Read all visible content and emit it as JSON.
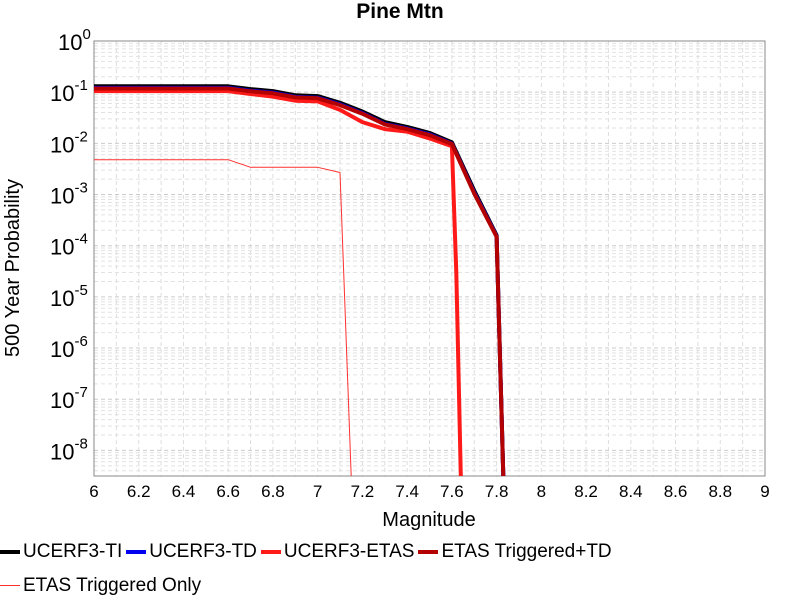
{
  "chart_data": {
    "type": "line",
    "title": "Pine Mtn",
    "xlabel": "Magnitude",
    "ylabel": "500 Year Probability",
    "xlim": [
      6,
      9
    ],
    "ylim_log10": [
      -8.5,
      0
    ],
    "y_scale": "log",
    "grid": true,
    "legend_position": "bottom",
    "x_ticks": [
      "6",
      "6.2",
      "6.4",
      "6.6",
      "6.8",
      "7",
      "7.2",
      "7.4",
      "7.6",
      "7.8",
      "8",
      "8.2",
      "8.4",
      "8.6",
      "8.8",
      "9"
    ],
    "y_ticks": [
      {
        "base": "10",
        "exp": "0"
      },
      {
        "base": "10",
        "exp": "-1"
      },
      {
        "base": "10",
        "exp": "-2"
      },
      {
        "base": "10",
        "exp": "-3"
      },
      {
        "base": "10",
        "exp": "-4"
      },
      {
        "base": "10",
        "exp": "-5"
      },
      {
        "base": "10",
        "exp": "-6"
      },
      {
        "base": "10",
        "exp": "-7"
      },
      {
        "base": "10",
        "exp": "-8"
      }
    ],
    "series": [
      {
        "name": "UCERF3-TI",
        "color": "#000000",
        "width": 4,
        "x": [
          6.0,
          6.1,
          6.2,
          6.3,
          6.4,
          6.5,
          6.6,
          6.7,
          6.8,
          6.9,
          7.0,
          7.1,
          7.2,
          7.3,
          7.4,
          7.5,
          7.6,
          7.7,
          7.8,
          7.83
        ],
        "y": [
          0.13,
          0.13,
          0.13,
          0.13,
          0.13,
          0.13,
          0.13,
          0.115,
          0.105,
          0.087,
          0.084,
          0.062,
          0.042,
          0.026,
          0.021,
          0.016,
          0.0105,
          0.0012,
          0.00016,
          1e-09
        ]
      },
      {
        "name": "UCERF3-TD",
        "color": "#0000ee",
        "width": 4,
        "x": [
          6.0,
          6.1,
          6.2,
          6.3,
          6.4,
          6.5,
          6.6,
          6.7,
          6.8,
          6.9,
          7.0,
          7.1,
          7.2,
          7.3,
          7.4,
          7.5,
          7.6,
          7.7,
          7.8,
          7.83
        ],
        "y": [
          0.121,
          0.121,
          0.121,
          0.121,
          0.121,
          0.121,
          0.121,
          0.107,
          0.098,
          0.081,
          0.078,
          0.058,
          0.039,
          0.024,
          0.0195,
          0.015,
          0.0099,
          0.0011,
          0.000155,
          1e-09
        ]
      },
      {
        "name": "UCERF3-ETAS",
        "color": "#ff1a1a",
        "width": 4,
        "x": [
          6.0,
          6.1,
          6.2,
          6.3,
          6.4,
          6.5,
          6.6,
          6.7,
          6.8,
          6.9,
          7.0,
          7.1,
          7.2,
          7.3,
          7.4,
          7.5,
          7.6,
          7.62,
          7.64
        ],
        "y": [
          0.105,
          0.105,
          0.105,
          0.105,
          0.105,
          0.105,
          0.105,
          0.092,
          0.082,
          0.068,
          0.066,
          0.045,
          0.026,
          0.019,
          0.017,
          0.0125,
          0.0088,
          3e-05,
          1e-09
        ]
      },
      {
        "name": "ETAS Triggered+TD",
        "color": "#b30000",
        "width": 4,
        "x": [
          6.0,
          6.1,
          6.2,
          6.3,
          6.4,
          6.5,
          6.6,
          6.7,
          6.8,
          6.9,
          7.0,
          7.1,
          7.2,
          7.3,
          7.4,
          7.5,
          7.6,
          7.7,
          7.8,
          7.83
        ],
        "y": [
          0.118,
          0.118,
          0.118,
          0.118,
          0.118,
          0.118,
          0.118,
          0.104,
          0.095,
          0.079,
          0.076,
          0.056,
          0.038,
          0.0235,
          0.019,
          0.0145,
          0.0097,
          0.00105,
          0.00015,
          1e-09
        ]
      },
      {
        "name": "ETAS Triggered Only",
        "color": "#ff3030",
        "width": 1,
        "x": [
          6.0,
          6.1,
          6.2,
          6.3,
          6.4,
          6.5,
          6.6,
          6.7,
          6.8,
          6.9,
          7.0,
          7.1,
          7.15
        ],
        "y": [
          0.0048,
          0.0048,
          0.0048,
          0.0048,
          0.0048,
          0.0048,
          0.0048,
          0.0034,
          0.0034,
          0.0034,
          0.0034,
          0.0027,
          1e-09
        ]
      }
    ]
  }
}
